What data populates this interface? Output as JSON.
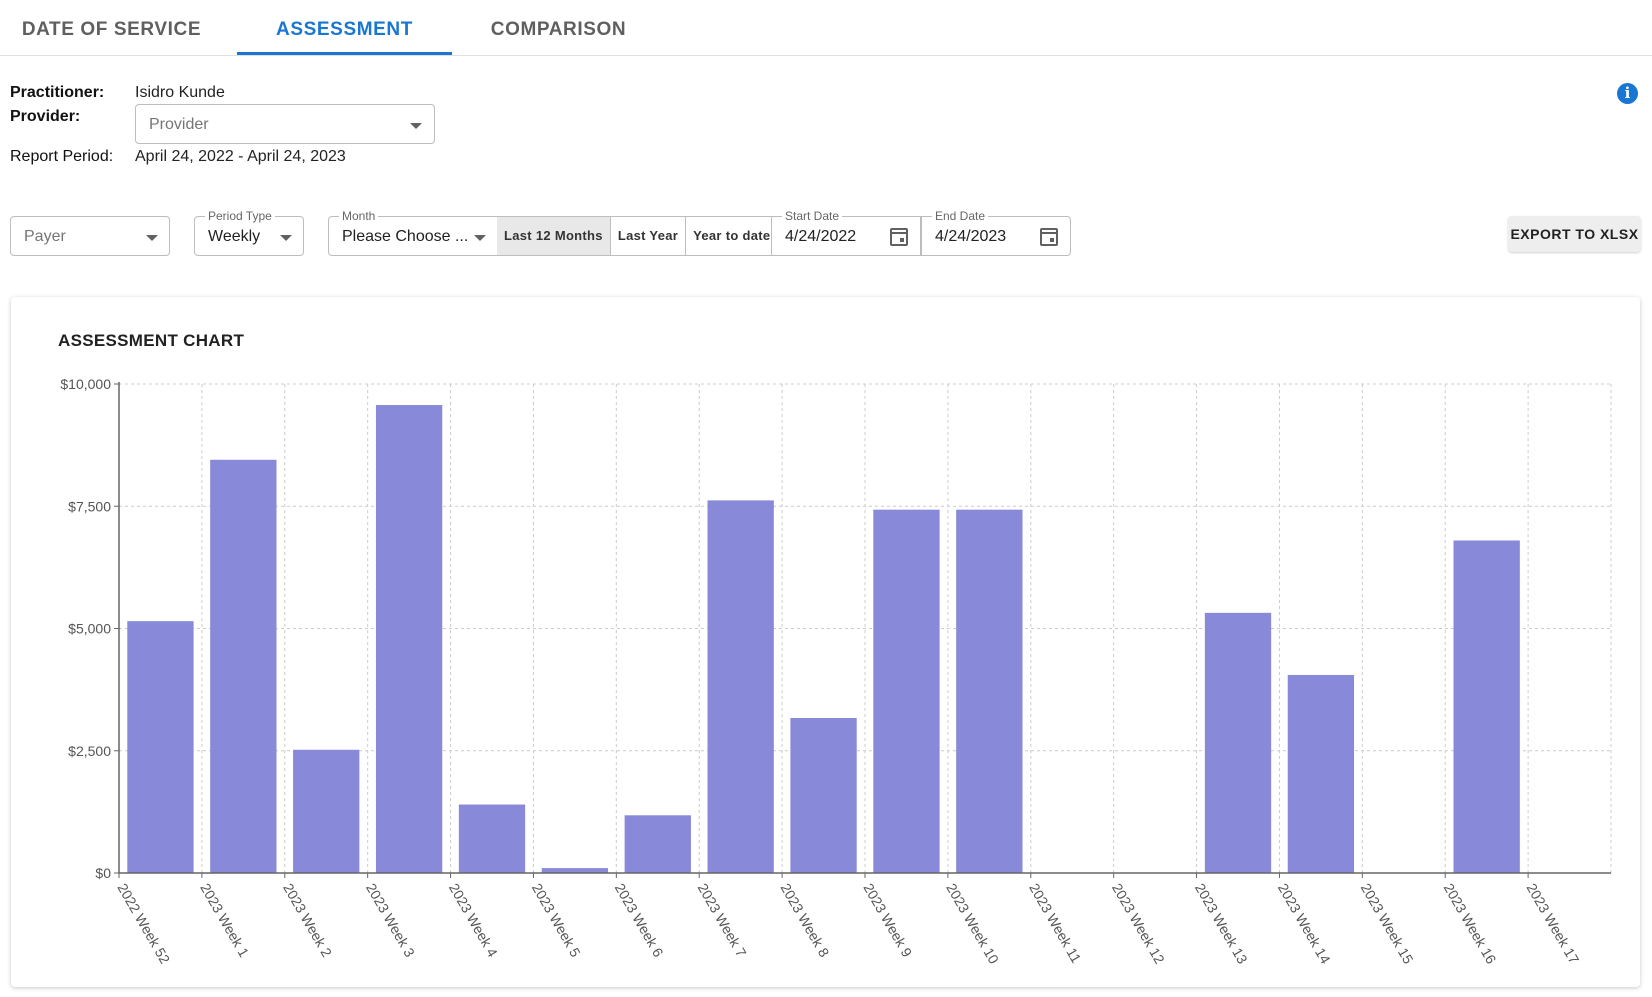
{
  "tabs": [
    {
      "label": "DATE OF SERVICE",
      "active": false
    },
    {
      "label": "ASSESSMENT",
      "active": true
    },
    {
      "label": "COMPARISON",
      "active": false
    }
  ],
  "info": {
    "practitioner_label": "Practitioner:",
    "practitioner_value": "Isidro Kunde",
    "provider_label": "Provider:",
    "provider_placeholder": "Provider",
    "report_period_label": "Report Period:",
    "report_period_value": "April 24, 2022 - April 24, 2023"
  },
  "filters": {
    "payer_placeholder": "Payer",
    "period_type_label": "Period Type",
    "period_type_value": "Weekly",
    "month_label": "Month",
    "month_value": "Please Choose ...",
    "quick_ranges": [
      {
        "label": "Last 12 Months",
        "selected": true
      },
      {
        "label": "Last Year",
        "selected": false
      },
      {
        "label": "Year to date",
        "selected": false
      }
    ],
    "start_date_label": "Start Date",
    "start_date_value": "4/24/2022",
    "end_date_label": "End Date",
    "end_date_value": "4/24/2023"
  },
  "export_label": "EXPORT TO XLSX",
  "icons": {
    "info": "info-icon",
    "calendar": "calendar-icon",
    "dropdown": "caret-down-icon"
  },
  "colors": {
    "accent": "#1976d2",
    "bar": "#8889d8",
    "grid": "#cccccc"
  },
  "chart_data": {
    "type": "bar",
    "title": "ASSESSMENT CHART",
    "categories": [
      "2022 Week 52",
      "2023 Week 1",
      "2023 Week 2",
      "2023 Week 3",
      "2023 Week 4",
      "2023 Week 5",
      "2023 Week 6",
      "2023 Week 7",
      "2023 Week 8",
      "2023 Week 9",
      "2023 Week 10",
      "2023 Week 11",
      "2023 Week 12",
      "2023 Week 13",
      "2023 Week 14",
      "2023 Week 15",
      "2023 Week 16",
      "2023 Week 17"
    ],
    "values": [
      5150,
      8450,
      2520,
      9570,
      1400,
      100,
      1180,
      7620,
      3170,
      7430,
      7430,
      0,
      0,
      5320,
      4050,
      0,
      6800,
      0
    ],
    "ylim": [
      0,
      10000
    ],
    "yticks": [
      0,
      2500,
      5000,
      7500,
      10000
    ],
    "ytick_labels": [
      "$0",
      "$2,500",
      "$5,000",
      "$7,500",
      "$10,000"
    ],
    "grid": true,
    "legend": "none"
  }
}
